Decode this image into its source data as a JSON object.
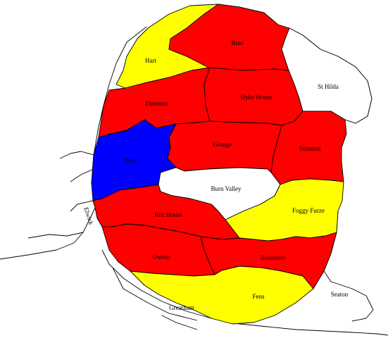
{
  "map": {
    "colors": {
      "red": "#ff0000",
      "yellow": "#ffff00",
      "blue": "#0000ff",
      "white": "#ffffff"
    },
    "wards": [
      {
        "id": "hart",
        "name": "Hart",
        "color": "yellow"
      },
      {
        "id": "brus",
        "name": "Brus",
        "color": "red"
      },
      {
        "id": "st-hilda",
        "name": "St Hilda",
        "color": "white"
      },
      {
        "id": "throston",
        "name": "Throston",
        "color": "red"
      },
      {
        "id": "dyke-house",
        "name": "Dyke House",
        "color": "red"
      },
      {
        "id": "park",
        "name": "Park",
        "color": "blue"
      },
      {
        "id": "grange",
        "name": "Grange",
        "color": "red"
      },
      {
        "id": "stranton",
        "name": "Stranton",
        "color": "red"
      },
      {
        "id": "burn-valley",
        "name": "Burn Valley",
        "color": "white"
      },
      {
        "id": "foggy-furze",
        "name": "Foggy Furze",
        "color": "yellow"
      },
      {
        "id": "rift-house",
        "name": "Rift House",
        "color": "red"
      },
      {
        "id": "owton",
        "name": "Owton",
        "color": "red"
      },
      {
        "id": "rossmere",
        "name": "Rossmere",
        "color": "red"
      },
      {
        "id": "fens",
        "name": "Fens",
        "color": "yellow"
      },
      {
        "id": "seaton",
        "name": "Seaton",
        "color": "white"
      },
      {
        "id": "greatham",
        "name": "Greatham",
        "color": "white"
      },
      {
        "id": "elwick",
        "name": "Elwick",
        "color": "white"
      }
    ]
  }
}
